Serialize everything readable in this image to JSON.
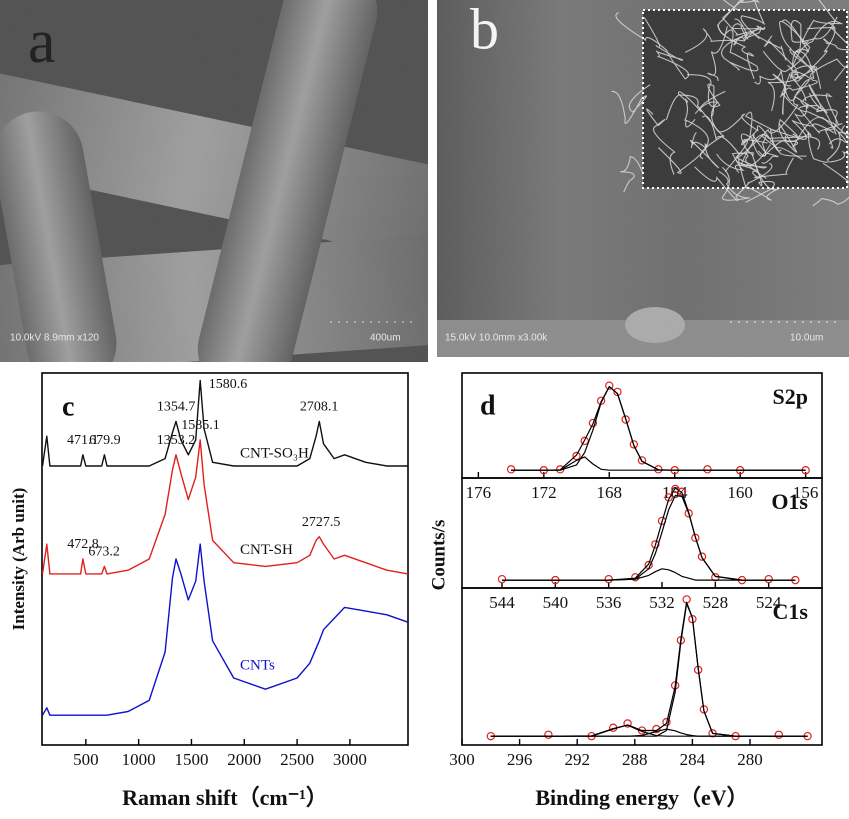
{
  "panels": {
    "a": {
      "letter": "a",
      "info": "10.0kV 8.9mm x120",
      "scale": "400um"
    },
    "b": {
      "letter": "b",
      "info": "15.0kV 10.0mm x3.00k",
      "scale": "10.0um"
    },
    "d": {
      "letter": "d",
      "xlabel": "Binding energy（eV）",
      "ylabel": "Counts/s"
    }
  },
  "chart_data": [
    {
      "type": "line",
      "letter": "c",
      "xlabel": "Raman shift（cm⁻¹）",
      "ylabel": "Intensity (Arb unit)",
      "xlim": [
        85,
        3550
      ],
      "xticks": [
        500,
        1000,
        1500,
        2000,
        2500,
        3000
      ],
      "ylim": [
        0,
        100
      ],
      "x": [
        90,
        130,
        160,
        300,
        450,
        472,
        500,
        650,
        676,
        700,
        900,
        1100,
        1250,
        1320,
        1354,
        1400,
        1470,
        1540,
        1583,
        1620,
        1700,
        1900,
        2200,
        2500,
        2620,
        2680,
        2710,
        2750,
        2850,
        2950,
        3150,
        3350,
        3550
      ],
      "series": [
        {
          "name": "CNT-SO₃H",
          "color": "#111111",
          "values": [
            75,
            83,
            75,
            75,
            75,
            78,
            75,
            75,
            78,
            75,
            75,
            75,
            77,
            84,
            87,
            82,
            78,
            82,
            98,
            85,
            76,
            75,
            75,
            75,
            77,
            83,
            87,
            81,
            77,
            78,
            76,
            75,
            75
          ]
        },
        {
          "name": "CNT-SH",
          "color": "#e02020",
          "values": [
            46,
            54,
            46,
            46,
            46,
            50,
            46,
            46,
            48,
            46,
            47,
            50,
            62,
            74,
            78,
            73,
            66,
            72,
            82,
            70,
            55,
            49,
            48,
            49,
            51,
            55,
            56,
            54,
            50,
            51,
            49,
            47,
            46
          ]
        },
        {
          "name": "CNTs",
          "color": "#1010d0",
          "values": [
            8,
            10,
            8,
            8,
            8,
            8,
            8,
            8,
            8,
            8,
            9,
            12,
            25,
            45,
            50,
            46,
            39,
            44,
            54,
            44,
            28,
            18,
            15,
            18,
            22,
            26,
            28,
            31,
            34,
            37,
            36,
            35,
            33
          ]
        }
      ],
      "annotations": [
        {
          "text": "471.1",
          "x": 471.1,
          "series": 0
        },
        {
          "text": "679.9",
          "x": 679.9,
          "series": 0
        },
        {
          "text": "1354.7",
          "x": 1354.7,
          "series": 0
        },
        {
          "text": "1580.6",
          "x": 1580.6,
          "series": 0
        },
        {
          "text": "2708.1",
          "x": 2708.1,
          "series": 0
        },
        {
          "text": "472.8",
          "x": 472.8,
          "series": 1
        },
        {
          "text": "673.2",
          "x": 673.2,
          "series": 1
        },
        {
          "text": "1353.2",
          "x": 1353.2,
          "series": 1
        },
        {
          "text": "1585.1",
          "x": 1585.1,
          "series": 1
        },
        {
          "text": "2727.5",
          "x": 2727.5,
          "series": 1
        }
      ]
    },
    {
      "type": "line",
      "label": "S2p",
      "xlim": [
        177,
        155
      ],
      "xticks": [
        176,
        172,
        168,
        164,
        160,
        156
      ],
      "ylim": [
        0,
        100
      ],
      "x": [
        174,
        172,
        171,
        170,
        169.5,
        169,
        168.5,
        168,
        167.5,
        167,
        166.5,
        166,
        165,
        164,
        162,
        160,
        156
      ],
      "series": [
        {
          "color": "#e02020",
          "marker": "circle",
          "values": [
            3,
            2,
            3,
            18,
            35,
            55,
            80,
            97,
            90,
            59,
            31,
            13,
            3,
            2,
            3,
            2,
            2
          ]
        },
        {
          "color": "#000000",
          "values": [
            2,
            2,
            2.5,
            19,
            36,
            54,
            79,
            96,
            88,
            60,
            30,
            12,
            2.5,
            2,
            2,
            2,
            2
          ]
        },
        {
          "color": "#000000",
          "values": [
            2,
            2,
            2,
            8,
            22,
            47,
            78,
            96,
            88,
            60,
            30,
            12,
            2.5,
            2,
            2,
            2,
            2
          ]
        },
        {
          "color": "#000000",
          "values": [
            2,
            2,
            2,
            13,
            17,
            9,
            3,
            2,
            2,
            2,
            2,
            2,
            2,
            2,
            2,
            2,
            2
          ]
        }
      ]
    },
    {
      "type": "line",
      "label": "O1s",
      "xlim": [
        547,
        520
      ],
      "xticks": [
        544,
        540,
        536,
        532,
        528,
        524
      ],
      "ylim": [
        0,
        100
      ],
      "x": [
        544,
        540,
        536,
        534,
        533,
        532.5,
        532,
        531.5,
        531,
        530.5,
        530,
        529.5,
        529,
        528,
        526,
        524,
        522
      ],
      "series": [
        {
          "color": "#e02020",
          "marker": "circle",
          "values": [
            3,
            2,
            3,
            5,
            18,
            40,
            65,
            90,
            99,
            96,
            73,
            47,
            27,
            5,
            2,
            3,
            2
          ]
        },
        {
          "color": "#000000",
          "values": [
            2,
            2,
            2,
            4,
            19,
            39,
            64,
            88,
            100,
            95,
            74,
            48,
            26,
            6,
            2,
            2,
            2
          ]
        },
        {
          "color": "#000000",
          "values": [
            2,
            2,
            2,
            3,
            14,
            30,
            53,
            77,
            92,
            91,
            73,
            48,
            26,
            6,
            2,
            2,
            2
          ]
        },
        {
          "color": "#000000",
          "values": [
            2,
            2,
            2,
            3,
            7,
            11,
            14,
            13,
            10,
            6,
            4,
            2,
            2,
            2,
            2,
            2,
            2
          ]
        }
      ]
    },
    {
      "type": "line",
      "label": "C1s",
      "xlim": [
        300,
        275
      ],
      "xticks": [
        300,
        296,
        292,
        288,
        284,
        280
      ],
      "ylim": [
        0,
        100
      ],
      "x": [
        298,
        294,
        291,
        289.5,
        288.5,
        287.5,
        286.5,
        285.8,
        285.2,
        284.8,
        284.4,
        284,
        283.6,
        283.2,
        282.6,
        281,
        278,
        276
      ],
      "series": [
        {
          "color": "#e02020",
          "marker": "circle",
          "values": [
            2,
            3,
            2,
            8,
            11,
            6,
            7,
            12,
            38,
            70,
            99,
            85,
            49,
            21,
            4,
            2,
            3,
            2
          ]
        },
        {
          "color": "#000000",
          "values": [
            2,
            2,
            2,
            7,
            10,
            6,
            6,
            11,
            37,
            71,
            97,
            86,
            50,
            20,
            4,
            2,
            2,
            2
          ]
        },
        {
          "color": "#000000",
          "values": [
            2,
            2,
            2,
            2,
            2,
            2,
            2,
            6,
            33,
            69,
            96,
            86,
            50,
            20,
            4,
            2,
            2,
            2
          ]
        },
        {
          "color": "#000000",
          "values": [
            2,
            2,
            2,
            2,
            2,
            2.5,
            5.4,
            7,
            5.8,
            4.3,
            3.1,
            2.4,
            2,
            2,
            2,
            2,
            2,
            2
          ]
        },
        {
          "color": "#000000",
          "values": [
            2,
            2,
            2.3,
            7.4,
            9.8,
            5.3,
            2.4,
            2,
            2,
            2,
            2,
            2,
            2,
            2,
            2,
            2,
            2,
            2
          ]
        }
      ]
    }
  ]
}
